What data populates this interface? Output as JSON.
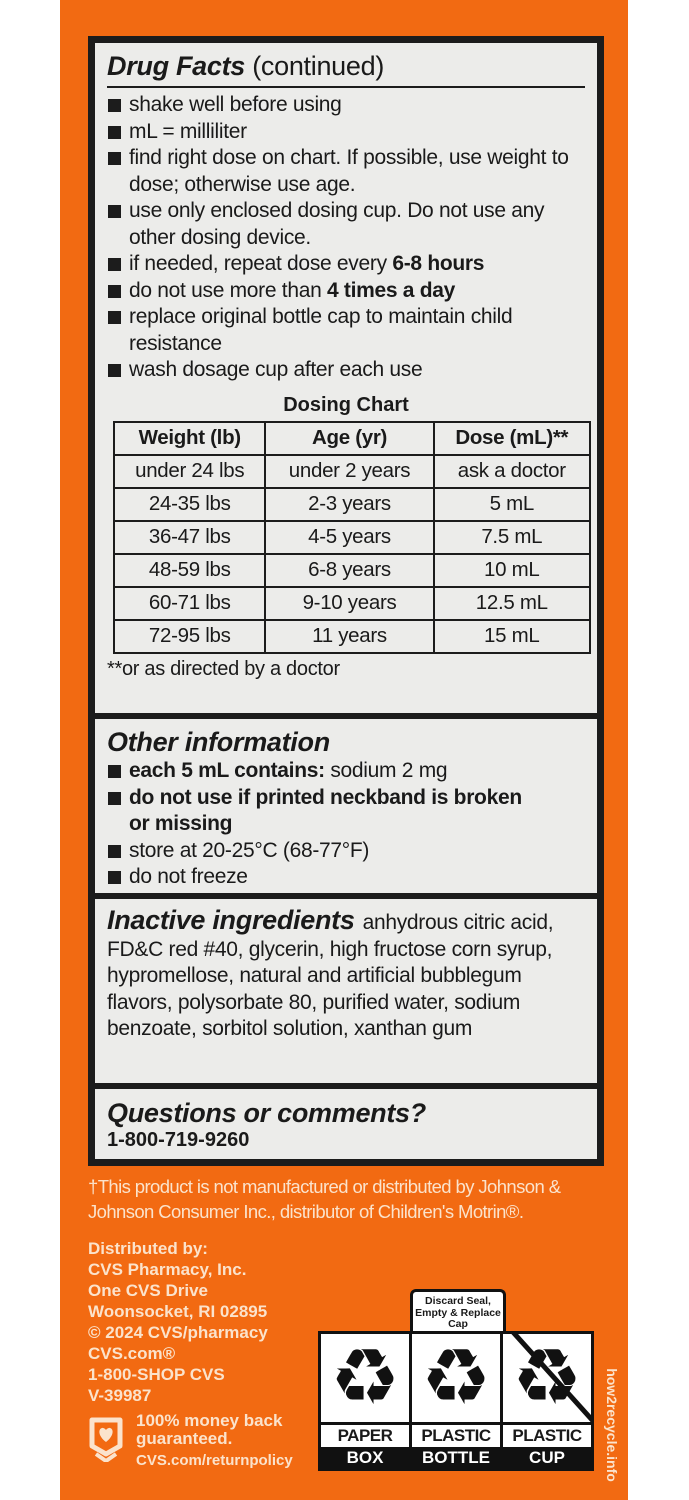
{
  "colors": {
    "box": "#f26a12",
    "panel": "#ececea",
    "ink": "#1c1c1c"
  },
  "drug_facts": {
    "title": "Drug Facts",
    "title_suffix": "(continued)",
    "bullets": [
      {
        "text": "shake well before using"
      },
      {
        "text": "mL = milliliter"
      },
      {
        "text": "find right dose on chart. If possible, use weight to dose; otherwise use age."
      },
      {
        "text": "use only enclosed dosing cup. Do not use any other dosing device."
      },
      {
        "text": "if needed, repeat dose every ",
        "bold": "6-8 hours"
      },
      {
        "text": "do not use more than ",
        "bold": "4 times a day"
      },
      {
        "text": "replace original bottle cap to maintain child resistance"
      },
      {
        "text": "wash dosage cup after each use"
      }
    ]
  },
  "dosing_chart": {
    "title": "Dosing Chart",
    "headers": [
      "Weight (lb)",
      "Age (yr)",
      "Dose (mL)**"
    ],
    "rows": [
      [
        "under 24 lbs",
        "under 2 years",
        "ask a doctor"
      ],
      [
        "24-35 lbs",
        "2-3 years",
        "5 mL"
      ],
      [
        "36-47 lbs",
        "4-5 years",
        "7.5 mL"
      ],
      [
        "48-59 lbs",
        "6-8 years",
        "10 mL"
      ],
      [
        "60-71 lbs",
        "9-10 years",
        "12.5 mL"
      ],
      [
        "72-95 lbs",
        "11 years",
        "15 mL"
      ]
    ],
    "footnote": "**or as directed by a doctor"
  },
  "other_information": {
    "title": "Other information",
    "bullets": [
      {
        "bold": "each 5 mL contains:",
        "text": " sodium 2 mg"
      },
      {
        "bold": "do not use if printed neckband is broken or missing"
      },
      {
        "text": "store at 20-25°C (68-77°F)"
      },
      {
        "text": "do not freeze"
      }
    ]
  },
  "inactive_ingredients": {
    "title": "Inactive ingredients",
    "text": "anhydrous citric acid, FD&C red #40, glycerin, high fructose corn syrup, hypromellose, natural and artificial bubblegum flavors, polysorbate 80, purified water, sodium benzoate, sorbitol solution, xanthan gum"
  },
  "questions": {
    "title": "Questions or comments?",
    "phone": "1-800-719-9260"
  },
  "disclaimer": "†This product is not manufactured or distributed by Johnson & Johnson Consumer Inc., distributor of Children's Motrin®.",
  "distributor": {
    "lines": [
      "Distributed by:",
      "CVS Pharmacy, Inc.",
      "One CVS Drive",
      "Woonsocket, RI 02895",
      "© 2024 CVS/pharmacy",
      "CVS.com®",
      "1-800-SHOP CVS",
      "V-39987"
    ]
  },
  "guarantee": {
    "text": "100% money back guaranteed.",
    "url": "CVS.com/returnpolicy",
    "icon": "heart-bag-icon"
  },
  "recycling": {
    "seal_note": "Discard Seal, Empty & Replace Cap",
    "items": [
      {
        "material": "PAPER",
        "item": "BOX",
        "icon": "recycle-icon"
      },
      {
        "material": "PLASTIC",
        "item": "BOTTLE",
        "icon": "recycle-icon"
      },
      {
        "material": "PLASTIC",
        "item": "CUP",
        "icon": "not-recyclable-icon"
      }
    ],
    "site": "how2recycle.info"
  }
}
